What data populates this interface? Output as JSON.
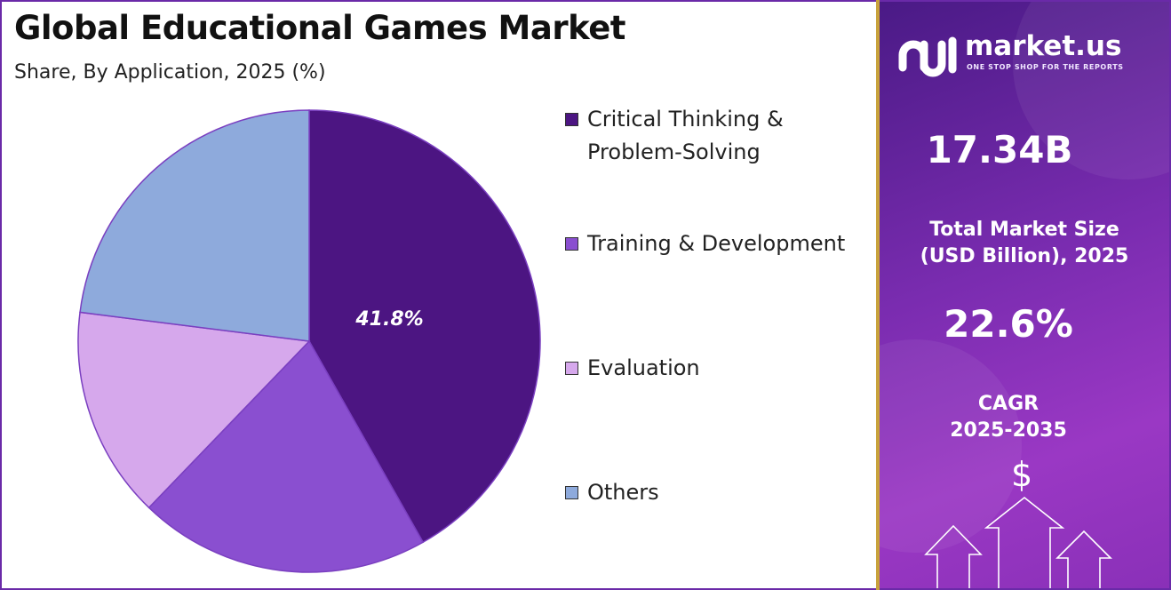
{
  "header": {
    "title": "Global Educational Games Market",
    "subtitle": "Share, By Application, 2025 (%)"
  },
  "chart_data": {
    "type": "pie",
    "title": "Global Educational Games Market",
    "subtitle": "Share, By Application, 2025 (%)",
    "categories": [
      "Critical Thinking & Problem-Solving",
      "Training & Development",
      "Evaluation",
      "Others"
    ],
    "values": [
      41.8,
      20.4,
      14.8,
      23.0
    ],
    "colors": [
      "#4c1582",
      "#8a4fd0",
      "#d6a8ec",
      "#8eaadc"
    ],
    "data_labels": [
      "41.8%",
      "",
      "",
      ""
    ],
    "legend_position": "right"
  },
  "legend": {
    "items": [
      {
        "label_line1": "Critical Thinking &",
        "label_line2": "Problem-Solving",
        "color": "#4c1582"
      },
      {
        "label_line1": "Training & Development",
        "label_line2": "",
        "color": "#8a4fd0"
      },
      {
        "label_line1": "Evaluation",
        "label_line2": "",
        "color": "#d6a8ec"
      },
      {
        "label_line1": "Others",
        "label_line2": "",
        "color": "#8eaadc"
      }
    ]
  },
  "sidebar": {
    "brand": "market.us",
    "tagline": "ONE STOP SHOP FOR THE REPORTS",
    "market_size_value": "17.34B",
    "market_size_label_line1": "Total Market Size",
    "market_size_label_line2": "(USD Billion), 2025",
    "cagr_value": "22.6%",
    "cagr_label_line1": "CAGR",
    "cagr_label_line2": "2025-2035",
    "dollar_symbol": "$",
    "icons": [
      "market-us-logo-icon",
      "dollar-icon",
      "growth-arrows-icon"
    ]
  }
}
